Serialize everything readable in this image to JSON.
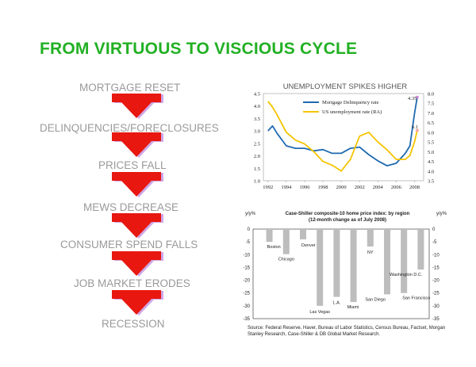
{
  "slide": {
    "title": "FROM VIRTUOUS TO VISCIOUS CYCLE",
    "steps": [
      "MORTGAGE RESET",
      "DELINQUENCIES/FORECLOSURES",
      "PRICES FALL",
      "MEWS DECREASE",
      "CONSUMER SPEND FALLS",
      "JOB MARKET ERODES",
      "RECESSION"
    ],
    "colors": {
      "title": "#22b024",
      "arrow": "#e8170f",
      "arrow_shadow": "#cfa7e6",
      "step_text": "#9a9a9a"
    }
  },
  "chart_data": [
    {
      "type": "line",
      "title": "UNEMPLOYMENT SPIKES HIGHER",
      "x": [
        1992,
        1992.5,
        1993,
        1994,
        1995,
        1996,
        1997,
        1998,
        1999,
        2000,
        2001,
        2002,
        2003,
        2004,
        2005,
        2006,
        2007,
        2007.5,
        2008,
        2008.3
      ],
      "series": [
        {
          "name": "Mortgage Delinquency rate",
          "axis": "left",
          "color": "#1f6ab0",
          "values": [
            3.0,
            3.2,
            2.9,
            2.4,
            2.3,
            2.3,
            2.2,
            2.25,
            2.1,
            2.1,
            2.3,
            2.35,
            2.05,
            1.8,
            1.6,
            1.7,
            2.1,
            2.4,
            3.7,
            4.35
          ]
        },
        {
          "name": "US unemployment rate (RA)",
          "axis": "right",
          "color": "#f5c400",
          "values": [
            7.6,
            7.3,
            6.9,
            6.0,
            5.6,
            5.4,
            5.0,
            4.5,
            4.3,
            4.0,
            4.6,
            5.8,
            6.0,
            5.5,
            5.1,
            4.6,
            4.6,
            4.8,
            5.5,
            6.1
          ]
        }
      ],
      "xticks": [
        1992,
        1994,
        1996,
        1998,
        2000,
        2002,
        2004,
        2006,
        2008
      ],
      "ylim_left": [
        1.0,
        4.5
      ],
      "yticks_left": [
        "1.0",
        "1.5",
        "2.0",
        "2.5",
        "3.0",
        "3.5",
        "4.0",
        "4.5"
      ],
      "ylim_right": [
        3.5,
        8.0
      ],
      "yticks_right": [
        "3.5",
        "4.0",
        "4.5",
        "5.0",
        "5.5",
        "6.0",
        "6.5",
        "7.0",
        "7.5",
        "8.0"
      ],
      "annotations": [
        "4.35",
        "6.1"
      ],
      "legend": "top-left"
    },
    {
      "type": "bar",
      "title": "Case-Shiller composite-10 home price index: by region",
      "subtitle": "(12-month change as of July 2008)",
      "ylabel_left": "y/y%",
      "ylabel_right": "y/y%",
      "ylim": [
        -35,
        0
      ],
      "yticks": [
        "0",
        "-5",
        "-10",
        "-15",
        "-20",
        "-25",
        "-30",
        "-35"
      ],
      "categories": [
        "Boston",
        "Chicago",
        "Denver",
        "Las Vegas",
        "L.A.",
        "Miami",
        "NY",
        "San Diego",
        "San Francisco",
        "Washington D.C."
      ],
      "values": [
        -5.0,
        -9.8,
        -4.0,
        -30.0,
        -26.5,
        -28.5,
        -6.8,
        -25.5,
        -25.0,
        -15.8
      ],
      "bar_color": "#bdbdbd"
    }
  ],
  "source_text": "Source: Federal Reserve, Haver, Bureau of Labor Statistics, Census Bureau, Factset, Morgan Stanley Research, Case-Shiller & DB Global Market Research."
}
